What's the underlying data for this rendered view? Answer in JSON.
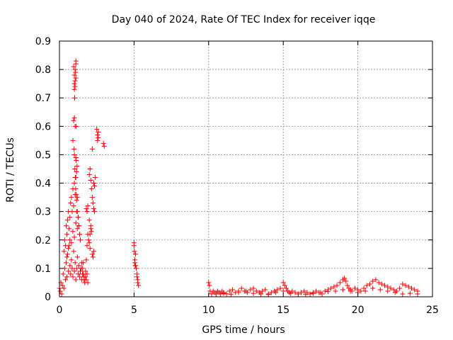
{
  "colors": {
    "series": "#ff0000",
    "grid": "#a0a0a0",
    "axis": "#000000",
    "background": "#ffffff"
  },
  "chart_data": {
    "type": "scatter",
    "title": "Day 040 of 2024, Rate Of TEC Index for receiver iqqe",
    "xlabel": "GPS time / hours",
    "ylabel": "ROTI / TECUs",
    "xlim": [
      0,
      25
    ],
    "ylim": [
      0,
      0.9
    ],
    "xticks": [
      0,
      5,
      10,
      15,
      20,
      25
    ],
    "xtick_labels": [
      "0",
      "5",
      "10",
      "15",
      "20",
      "25"
    ],
    "yticks": [
      0,
      0.1,
      0.2,
      0.3,
      0.4,
      0.5,
      0.6,
      0.7,
      0.8,
      0.9
    ],
    "ytick_labels": [
      "0",
      "0.1",
      "0.2",
      "0.3",
      "0.4",
      "0.5",
      "0.6",
      "0.7",
      "0.8",
      "0.9"
    ],
    "grid": true,
    "marker": "+",
    "series": [
      {
        "name": "ROTI",
        "x": [
          0.0,
          0.05,
          0.1,
          0.15,
          0.2,
          0.25,
          0.3,
          0.35,
          0.4,
          0.45,
          0.5,
          0.55,
          0.6,
          0.65,
          0.7,
          0.75,
          0.8,
          0.85,
          0.9,
          0.95,
          1.0,
          1.05,
          1.1,
          1.15,
          1.2,
          1.25,
          1.3,
          1.35,
          1.4,
          1.45,
          1.5,
          1.55,
          1.6,
          1.65,
          1.7,
          1.75,
          1.8,
          1.85,
          1.9,
          0.3,
          0.35,
          0.4,
          0.45,
          0.5,
          0.55,
          0.6,
          0.65,
          0.7,
          0.75,
          0.8,
          0.85,
          0.9,
          0.95,
          1.0,
          1.05,
          1.1,
          1.15,
          1.2,
          1.25,
          1.3,
          1.35,
          1.4,
          0.5,
          0.6,
          0.7,
          0.8,
          0.9,
          1.0,
          1.1,
          1.2,
          0.9,
          0.95,
          1.0,
          1.05,
          1.1,
          1.12,
          1.15,
          1.18,
          1.0,
          1.05,
          1.1,
          0.95,
          1.0,
          1.05,
          1.1,
          1.0,
          1.02,
          1.05,
          1.08,
          1.1,
          1.12,
          0.98,
          1.0,
          1.03,
          1.06,
          1.09,
          1.12,
          1.15,
          1.2,
          1.25,
          1.3,
          1.35,
          1.5,
          1.55,
          1.6,
          1.65,
          1.7,
          1.75,
          1.8,
          1.85,
          1.9,
          1.95,
          2.0,
          2.05,
          2.1,
          2.15,
          2.2,
          2.25,
          2.3,
          1.8,
          1.85,
          1.9,
          2.0,
          2.05,
          2.1,
          2.15,
          2.2,
          2.25,
          2.3,
          2.35,
          2.4,
          2.5,
          2.55,
          2.6,
          2.55,
          2.6,
          2.2,
          2.3,
          2.35,
          2.0,
          2.05,
          2.1,
          2.95,
          3.0,
          5.0,
          5.02,
          5.05,
          5.08,
          5.1,
          5.0,
          5.05,
          5.1,
          5.15,
          5.2,
          5.25,
          5.3,
          5.2,
          5.25,
          10.0,
          10.05,
          10.1,
          10.2,
          10.3,
          10.4,
          10.5,
          10.6,
          10.7,
          10.8,
          10.9,
          11.0,
          11.2,
          11.4,
          11.6,
          11.8,
          12.0,
          12.2,
          12.4,
          12.6,
          12.8,
          13.0,
          13.2,
          13.4,
          13.6,
          13.8,
          14.0,
          14.2,
          14.4,
          14.6,
          14.8,
          15.0,
          15.1,
          15.2,
          15.3,
          15.4,
          15.6,
          15.8,
          16.0,
          16.2,
          16.4,
          16.6,
          16.8,
          17.0,
          17.2,
          17.4,
          17.6,
          17.8,
          18.0,
          18.2,
          18.4,
          18.6,
          18.8,
          19.0,
          19.1,
          19.2,
          19.3,
          19.4,
          19.5,
          19.6,
          19.8,
          20.0,
          20.2,
          20.4,
          20.6,
          20.8,
          21.0,
          21.2,
          21.4,
          21.6,
          21.8,
          22.0,
          22.2,
          22.4,
          22.6,
          22.8,
          23.0,
          23.2,
          23.4,
          23.6,
          23.8,
          24.0,
          10.5,
          11.0,
          11.5,
          12.0,
          12.5,
          13.0,
          13.5,
          14.0,
          14.5,
          15.0,
          15.5,
          16.0,
          16.5,
          17.0,
          17.5,
          18.0,
          18.5,
          19.0,
          19.5,
          20.0,
          20.5,
          21.0,
          21.5,
          22.0,
          22.5,
          23.0,
          23.5,
          24.0
        ],
        "y": [
          0.03,
          0.02,
          0.05,
          0.01,
          0.04,
          0.08,
          0.03,
          0.1,
          0.06,
          0.12,
          0.07,
          0.15,
          0.09,
          0.18,
          0.11,
          0.08,
          0.13,
          0.1,
          0.07,
          0.16,
          0.09,
          0.12,
          0.06,
          0.1,
          0.14,
          0.08,
          0.11,
          0.07,
          0.09,
          0.1,
          0.06,
          0.08,
          0.12,
          0.07,
          0.05,
          0.09,
          0.06,
          0.08,
          0.05,
          0.16,
          0.2,
          0.18,
          0.25,
          0.22,
          0.27,
          0.3,
          0.24,
          0.28,
          0.33,
          0.35,
          0.3,
          0.38,
          0.32,
          0.4,
          0.36,
          0.42,
          0.3,
          0.35,
          0.28,
          0.25,
          0.22,
          0.2,
          0.14,
          0.17,
          0.2,
          0.19,
          0.23,
          0.21,
          0.26,
          0.24,
          0.55,
          0.62,
          0.63,
          0.6,
          0.49,
          0.48,
          0.44,
          0.46,
          0.75,
          0.8,
          0.82,
          0.81,
          0.78,
          0.76,
          0.77,
          0.73,
          0.7,
          0.74,
          0.79,
          0.83,
          0.6,
          0.52,
          0.5,
          0.45,
          0.42,
          0.38,
          0.36,
          0.34,
          0.3,
          0.28,
          0.25,
          0.22,
          0.12,
          0.1,
          0.08,
          0.06,
          0.05,
          0.07,
          0.13,
          0.18,
          0.22,
          0.2,
          0.19,
          0.17,
          0.25,
          0.23,
          0.15,
          0.14,
          0.16,
          0.31,
          0.3,
          0.32,
          0.43,
          0.45,
          0.41,
          0.38,
          0.35,
          0.33,
          0.4,
          0.39,
          0.42,
          0.59,
          0.57,
          0.58,
          0.55,
          0.56,
          0.52,
          0.31,
          0.3,
          0.27,
          0.22,
          0.24,
          0.54,
          0.53,
          0.18,
          0.16,
          0.12,
          0.11,
          0.15,
          0.19,
          0.13,
          0.11,
          0.1,
          0.07,
          0.05,
          0.04,
          0.08,
          0.06,
          0.05,
          0.04,
          0.02,
          0.01,
          0.02,
          0.015,
          0.01,
          0.02,
          0.015,
          0.01,
          0.02,
          0.015,
          0.01,
          0.02,
          0.025,
          0.015,
          0.02,
          0.03,
          0.02,
          0.015,
          0.025,
          0.03,
          0.02,
          0.015,
          0.02,
          0.025,
          0.01,
          0.015,
          0.02,
          0.025,
          0.03,
          0.05,
          0.04,
          0.03,
          0.02,
          0.015,
          0.02,
          0.015,
          0.01,
          0.015,
          0.02,
          0.015,
          0.01,
          0.015,
          0.02,
          0.015,
          0.01,
          0.02,
          0.025,
          0.03,
          0.035,
          0.04,
          0.05,
          0.06,
          0.065,
          0.055,
          0.04,
          0.03,
          0.025,
          0.02,
          0.03,
          0.025,
          0.02,
          0.03,
          0.04,
          0.045,
          0.055,
          0.06,
          0.05,
          0.045,
          0.04,
          0.035,
          0.03,
          0.025,
          0.02,
          0.03,
          0.045,
          0.04,
          0.035,
          0.03,
          0.025,
          0.02,
          0.01,
          0.012,
          0.008,
          0.015,
          0.02,
          0.012,
          0.01,
          0.008,
          0.015,
          0.02,
          0.012,
          0.01,
          0.008,
          0.012,
          0.015,
          0.018,
          0.02,
          0.025,
          0.02,
          0.015,
          0.02,
          0.03,
          0.025,
          0.02,
          0.015,
          0.01,
          0.012,
          0.01
        ]
      }
    ]
  }
}
